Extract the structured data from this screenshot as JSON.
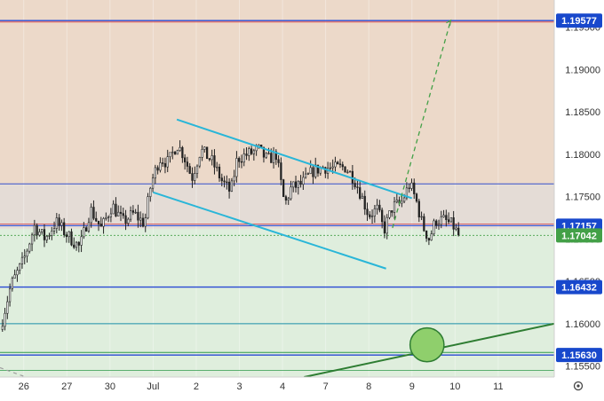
{
  "chart_data": {
    "type": "candlestick",
    "price_axis": {
      "min": 1.1537,
      "max": 1.1982,
      "ticks": [
        "1.19500",
        "1.19000",
        "1.18500",
        "1.18000",
        "1.17500",
        "1.17000",
        "1.16500",
        "1.16000",
        "1.15500"
      ],
      "tick_values": [
        1.195,
        1.19,
        1.185,
        1.18,
        1.175,
        1.17,
        1.165,
        1.16,
        1.155
      ]
    },
    "time_axis": {
      "labels": [
        "26",
        "27",
        "30",
        "Jul",
        "2",
        "3",
        "4",
        "7",
        "8",
        "9",
        "10",
        "11"
      ],
      "label_sessions": [
        0,
        1,
        2,
        3,
        4,
        5,
        6,
        7,
        8,
        9,
        10,
        11
      ],
      "range": [
        -0.55,
        12.3
      ]
    },
    "price_tags": [
      {
        "text": "1.19577",
        "value": 1.19577,
        "color": "#1848cc"
      },
      {
        "text": "1.17157",
        "value": 1.17157,
        "color": "#1848cc"
      },
      {
        "text": "1.17042",
        "value": 1.17042,
        "color": "#43a047"
      },
      {
        "text": "1.16432",
        "value": 1.16432,
        "color": "#1848cc"
      },
      {
        "text": "1.15630",
        "value": 1.1563,
        "color": "#1848cc"
      }
    ],
    "zones": [
      {
        "from": 1.1765,
        "to": 1.1982,
        "color": "#ecd9c9"
      },
      {
        "from": 1.1712,
        "to": 1.1765,
        "color": "#e4dcd6"
      },
      {
        "from": 1.1537,
        "to": 1.1712,
        "color": "#dfeedd"
      }
    ],
    "horizontal_lines": [
      {
        "value": 1.19577,
        "color": "#2a4ad4",
        "width": 1.4
      },
      {
        "value": 1.1956,
        "color": "#d84040",
        "width": 0.8
      },
      {
        "value": 1.1765,
        "color": "#3550cc",
        "width": 1
      },
      {
        "value": 1.17175,
        "color": "#d84040",
        "width": 0.8
      },
      {
        "value": 1.17157,
        "color": "#2a4ad4",
        "width": 1.2
      },
      {
        "value": 1.17042,
        "color": "#43a047",
        "width": 0.8,
        "dash": true
      },
      {
        "value": 1.16432,
        "color": "#2a4ad4",
        "width": 1.4
      },
      {
        "value": 1.16,
        "color": "#1a8fa8",
        "width": 1
      },
      {
        "value": 1.1566,
        "color": "#2e9a4a",
        "width": 1
      },
      {
        "value": 1.1563,
        "color": "#2a4ad4",
        "width": 1.4
      },
      {
        "value": 1.1545,
        "color": "#2e9a4a",
        "width": 0.8
      }
    ],
    "channel": {
      "color": "#29b6d8",
      "upper": [
        {
          "x": 3.55,
          "y": 1.1841
        },
        {
          "x": 9.0,
          "y": 1.1748
        }
      ],
      "lower": [
        {
          "x": 3.0,
          "y": 1.1755
        },
        {
          "x": 8.4,
          "y": 1.1665
        }
      ]
    },
    "projection": {
      "color": "#43a047",
      "from": {
        "x": 8.55,
        "y": 1.1713
      },
      "to": {
        "x": 9.9,
        "y": 1.1958
      }
    },
    "trendlines": [
      {
        "color": "#2e7d32",
        "from": {
          "x": 6.5,
          "y": 1.1537
        },
        "to": {
          "x": 12.3,
          "y": 1.16
        }
      },
      {
        "color": "#9e9e9e",
        "dash": true,
        "from": {
          "x": -0.55,
          "y": 1.1548
        },
        "to": {
          "x": 0.05,
          "y": 1.1537
        }
      }
    ],
    "marker": {
      "x": 9.35,
      "y": 1.1575,
      "radius_y": 0.002,
      "fill": "#8fcf6c",
      "stroke": "#2e7d32"
    },
    "path": [
      {
        "x": -0.55,
        "y": 1.1593
      },
      {
        "x": -0.3,
        "y": 1.1645
      },
      {
        "x": 0.0,
        "y": 1.1675
      },
      {
        "x": 0.25,
        "y": 1.1715
      },
      {
        "x": 0.5,
        "y": 1.17
      },
      {
        "x": 0.75,
        "y": 1.172
      },
      {
        "x": 1.0,
        "y": 1.1705
      },
      {
        "x": 1.3,
        "y": 1.169
      },
      {
        "x": 1.55,
        "y": 1.1735
      },
      {
        "x": 1.8,
        "y": 1.1712
      },
      {
        "x": 2.05,
        "y": 1.174
      },
      {
        "x": 2.3,
        "y": 1.172
      },
      {
        "x": 2.55,
        "y": 1.173
      },
      {
        "x": 2.8,
        "y": 1.1718
      },
      {
        "x": 2.95,
        "y": 1.1765
      },
      {
        "x": 3.15,
        "y": 1.1795
      },
      {
        "x": 3.35,
        "y": 1.179
      },
      {
        "x": 3.55,
        "y": 1.1812
      },
      {
        "x": 3.7,
        "y": 1.18
      },
      {
        "x": 3.9,
        "y": 1.1772
      },
      {
        "x": 4.1,
        "y": 1.1805
      },
      {
        "x": 4.35,
        "y": 1.1793
      },
      {
        "x": 4.6,
        "y": 1.1768
      },
      {
        "x": 4.8,
        "y": 1.1755
      },
      {
        "x": 4.95,
        "y": 1.1795
      },
      {
        "x": 5.2,
        "y": 1.18
      },
      {
        "x": 5.45,
        "y": 1.1805
      },
      {
        "x": 5.65,
        "y": 1.1793
      },
      {
        "x": 5.85,
        "y": 1.18
      },
      {
        "x": 6.05,
        "y": 1.174
      },
      {
        "x": 6.2,
        "y": 1.176
      },
      {
        "x": 6.45,
        "y": 1.1765
      },
      {
        "x": 6.7,
        "y": 1.178
      },
      {
        "x": 6.95,
        "y": 1.1785
      },
      {
        "x": 7.2,
        "y": 1.1783
      },
      {
        "x": 7.45,
        "y": 1.1785
      },
      {
        "x": 7.65,
        "y": 1.1772
      },
      {
        "x": 7.8,
        "y": 1.1755
      },
      {
        "x": 8.0,
        "y": 1.1728
      },
      {
        "x": 8.2,
        "y": 1.1735
      },
      {
        "x": 8.35,
        "y": 1.171
      },
      {
        "x": 8.55,
        "y": 1.1738
      },
      {
        "x": 8.75,
        "y": 1.1742
      },
      {
        "x": 8.95,
        "y": 1.1765
      },
      {
        "x": 9.1,
        "y": 1.1745
      },
      {
        "x": 9.25,
        "y": 1.1715
      },
      {
        "x": 9.4,
        "y": 1.17
      },
      {
        "x": 9.55,
        "y": 1.1722
      },
      {
        "x": 9.75,
        "y": 1.1722
      },
      {
        "x": 9.95,
        "y": 1.1716
      },
      {
        "x": 10.08,
        "y": 1.1704
      }
    ],
    "candle_count": 186,
    "up_color": "#222222",
    "down_color": "#222222"
  },
  "gear_icon": "gear-icon",
  "colors": {
    "axis_bg": "#ffffff",
    "tick_text": "#333333",
    "tag_text": "#ffffff"
  }
}
